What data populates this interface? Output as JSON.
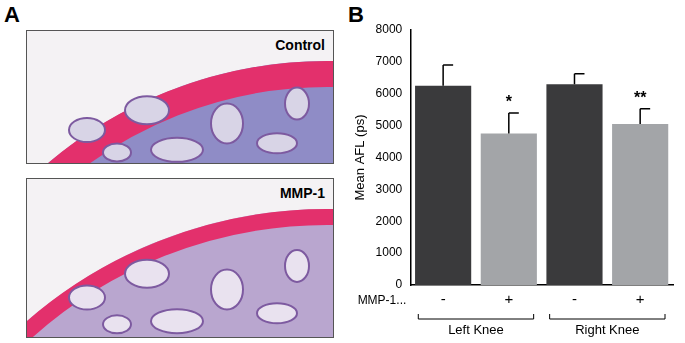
{
  "panel_labels": [
    "A",
    "B"
  ],
  "images": [
    "Control",
    "MMP-1"
  ],
  "chart_data": {
    "type": "bar",
    "y_label": "Mean AFL (ps)",
    "x_row_label": "MMP-1...",
    "categories": [
      "-",
      "+",
      "-",
      "+"
    ],
    "groups": [
      "Left Knee",
      "Right Knee"
    ],
    "values": [
      6250,
      4750,
      6300,
      5050
    ],
    "errors": [
      650,
      650,
      330,
      480
    ],
    "significance": [
      null,
      "*",
      null,
      "**"
    ],
    "colors": [
      "#3a3a3c",
      "#a3a5a8",
      "#3a3a3c",
      "#a3a5a8"
    ],
    "ylim": [
      0,
      8000
    ],
    "yticks": [
      0,
      1000,
      2000,
      3000,
      4000,
      5000,
      6000,
      7000,
      8000
    ],
    "grid": false
  }
}
